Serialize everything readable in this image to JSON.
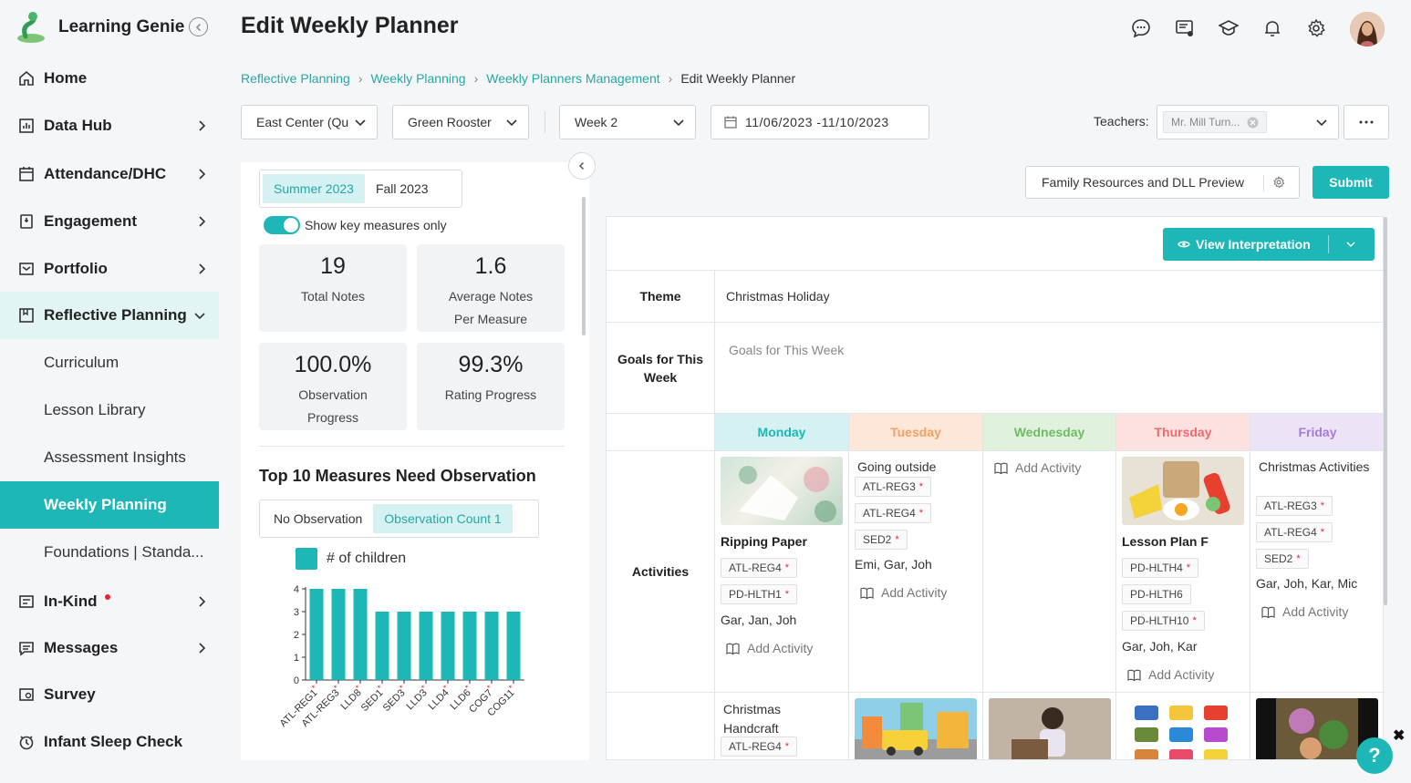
{
  "app": {
    "name": "Learning Genie"
  },
  "sidebar": {
    "items": [
      {
        "label": "Home",
        "icon": "home-icon"
      },
      {
        "label": "Data Hub",
        "icon": "chart-icon"
      },
      {
        "label": "Attendance/DHC",
        "icon": "calendar-icon"
      },
      {
        "label": "Engagement",
        "icon": "engagement-icon"
      },
      {
        "label": "Portfolio",
        "icon": "portfolio-icon"
      },
      {
        "label": "Reflective Planning",
        "icon": "planning-icon"
      },
      {
        "label": "In-Kind",
        "icon": "inkind-icon"
      },
      {
        "label": "Messages",
        "icon": "message-icon"
      },
      {
        "label": "Survey",
        "icon": "survey-icon"
      },
      {
        "label": "Infant Sleep Check",
        "icon": "clock-icon"
      }
    ],
    "sub_items": [
      "Curriculum",
      "Lesson Library",
      "Assessment Insights",
      "Weekly Planning",
      "Foundations | Standa..."
    ]
  },
  "header": {
    "title": "Edit Weekly Planner",
    "breadcrumb": [
      "Reflective Planning",
      "Weekly Planning",
      "Weekly Planners Management",
      "Edit Weekly Planner"
    ]
  },
  "filters": {
    "center": "East Center (Qu",
    "group": "Green Rooster",
    "week": "Week 2",
    "date_range": "11/06/2023 -11/10/2023",
    "teachers_label": "Teachers:",
    "teacher_chip": "Mr. Mill Turn..."
  },
  "left_panel": {
    "seasons": [
      "Summer 2023",
      "Fall 2023"
    ],
    "toggle_label": "Show key measures only",
    "stats": [
      {
        "value": "19",
        "label1": "Total Notes",
        "label2": ""
      },
      {
        "value": "1.6",
        "label1": "Average Notes",
        "label2": "Per Measure"
      },
      {
        "value": "100.0%",
        "label1": "Observation",
        "label2": "Progress"
      },
      {
        "value": "99.3%",
        "label1": "Rating Progress",
        "label2": ""
      }
    ],
    "section_title": "Top 10 Measures Need Observation",
    "obs_tabs": [
      "No Observation",
      "Observation Count 1"
    ]
  },
  "chart_data": {
    "type": "bar",
    "legend": "# of children",
    "categories": [
      "ATL-REG1",
      "ATL-REG3",
      "LLD8",
      "SED1",
      "SED3",
      "LLD3",
      "LLD4",
      "LLD6",
      "COG7",
      "COG11"
    ],
    "values": [
      4,
      4,
      4,
      3,
      3,
      3,
      3,
      3,
      3,
      3
    ],
    "ylim": [
      0,
      4
    ],
    "yticks": [
      "0",
      "1",
      "2",
      "3",
      "4"
    ],
    "color": "#1db7b7"
  },
  "actions": {
    "family_resources": "Family Resources and DLL Preview",
    "submit": "Submit",
    "view_interpretation": "View Interpretation"
  },
  "planner": {
    "theme_label": "Theme",
    "theme_value": "Christmas Holiday",
    "goals_label": "Goals for This Week",
    "goals_placeholder": "Goals for This Week",
    "activities_label": "Activities",
    "add_activity": "Add Activity",
    "days": [
      "Monday",
      "Tuesday",
      "Wednesday",
      "Thursday",
      "Friday"
    ],
    "monday": {
      "title": "Ripping Paper",
      "tags": [
        "ATL-REG4",
        "PD-HLTH1"
      ],
      "children": "Gar, Jan, Joh"
    },
    "tuesday": {
      "title": "Going outside",
      "tags": [
        "ATL-REG3",
        "ATL-REG4",
        "SED2"
      ],
      "children": "Emi, Gar, Joh"
    },
    "thursday": {
      "title": "Lesson Plan F",
      "tags": [
        "PD-HLTH4",
        "PD-HLTH6",
        "PD-HLTH10"
      ],
      "children": "Gar, Joh, Kar"
    },
    "friday": {
      "title": "Christmas Activities",
      "tags": [
        "ATL-REG3",
        "ATL-REG4",
        "SED2"
      ],
      "children": "Gar, Joh, Kar, Mic"
    },
    "monday2": {
      "title": "Christmas Handcraft",
      "tag": "ATL-REG4"
    }
  },
  "colors": {
    "accent": "#1db7b7",
    "monday": "#d6f1f1",
    "tuesday": "#fde7d9",
    "wednesday": "#e0f2de",
    "thursday": "#fde0e0",
    "friday": "#ece3f7"
  }
}
